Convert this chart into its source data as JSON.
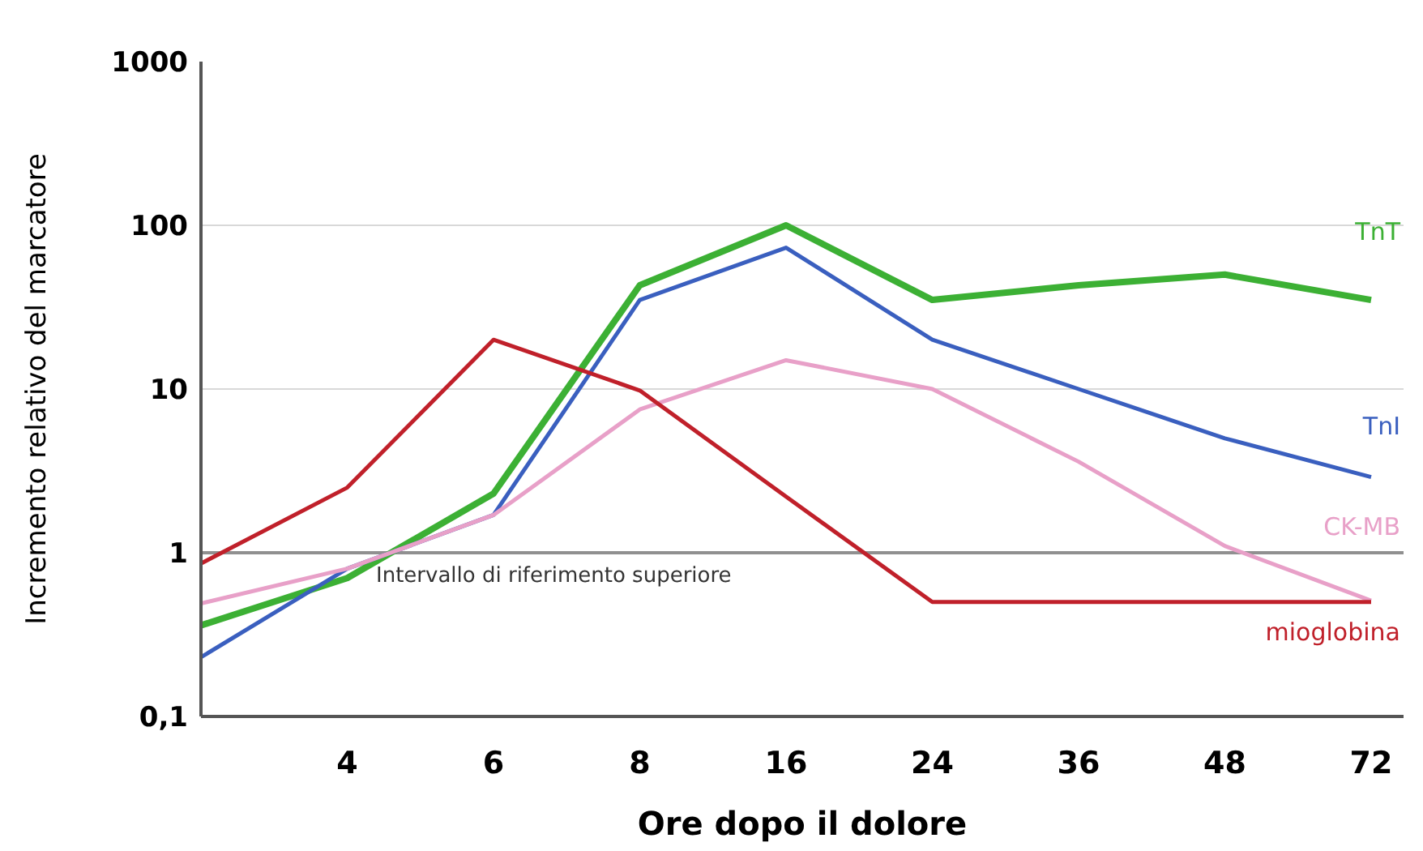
{
  "chart_data": {
    "type": "line",
    "xlabel": "Ore dopo il dolore",
    "ylabel": "Incremento relativo del marcatore",
    "categories": [
      null,
      "4",
      "6",
      "8",
      "16",
      "24",
      "36",
      "48",
      "72"
    ],
    "series": [
      {
        "name": "TnT",
        "color": "#3cb034",
        "values": [
          0.36,
          0.7,
          2.3,
          43,
          100,
          35,
          43,
          50,
          35
        ]
      },
      {
        "name": "TnI",
        "color": "#3a5fbf",
        "values": [
          0.23,
          0.8,
          1.7,
          35,
          73,
          20,
          10,
          5,
          2.9
        ]
      },
      {
        "name": "CK-MB",
        "color": "#e8a0c8",
        "values": [
          0.49,
          0.8,
          1.7,
          7.5,
          15,
          10,
          3.6,
          1.1,
          0.51
        ]
      },
      {
        "name": "mioglobina",
        "color": "#c0202a",
        "values": [
          0.86,
          2.5,
          20,
          9.8,
          2.2,
          0.5,
          0.5,
          0.5,
          0.5
        ]
      }
    ],
    "log": "y",
    "ylim": [
      0.1,
      1000
    ],
    "yticks": [
      {
        "value": 0.1,
        "label": "0,1"
      },
      1,
      10,
      100,
      1000
    ],
    "grid": "y",
    "legend": false,
    "ref_lines": [
      {
        "axis": "y",
        "value": 1,
        "label": "Intervallo di riferimento superiore",
        "color": "#909090"
      }
    ]
  }
}
